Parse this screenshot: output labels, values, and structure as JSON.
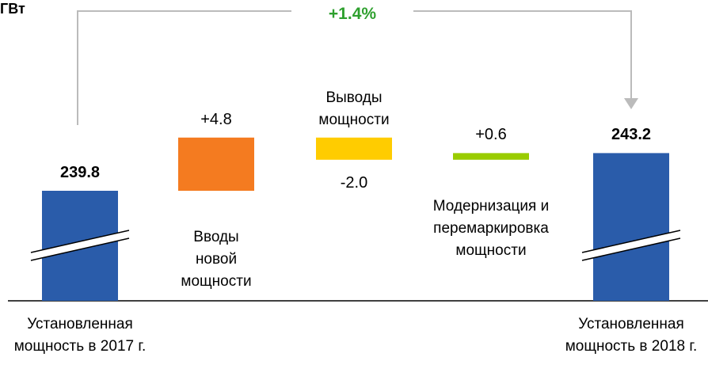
{
  "chart_data": {
    "type": "waterfall",
    "unit": "ГВт",
    "annotation": "+1.4%",
    "categories": [
      "Установленная мощность в 2017 г.",
      "Вводы новой мощности",
      "Выводы мощности",
      "Модернизация и перемаркировка мощности",
      "Установленная мощность в 2018 г."
    ],
    "values": [
      239.8,
      4.8,
      -2.0,
      0.6,
      243.2
    ],
    "value_labels": [
      "239.8",
      "+4.8",
      "-2.0",
      "+0.6",
      "243.2"
    ],
    "totals": [
      true,
      false,
      false,
      false,
      true
    ],
    "colors": [
      "#2a5caa",
      "#f47b20",
      "#ffcc00",
      "#99cc00",
      "#2a5caa"
    ],
    "annotation_color": "#2ea02e"
  }
}
